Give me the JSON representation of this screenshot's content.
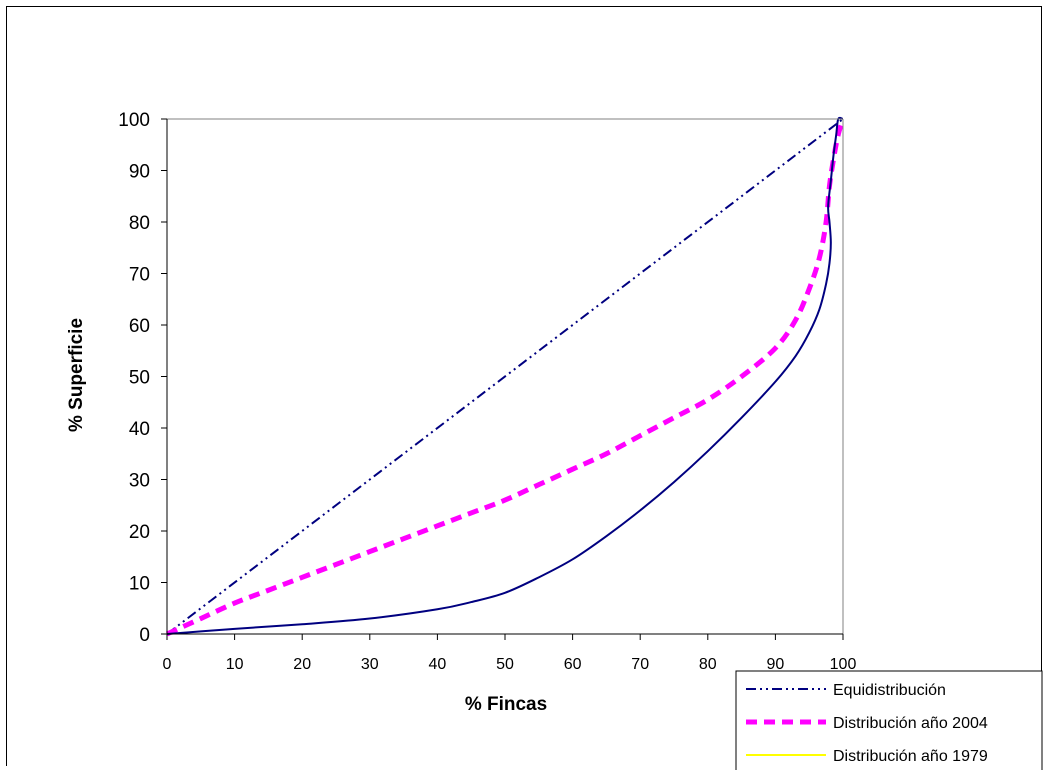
{
  "chart_data": {
    "type": "line",
    "xlabel": "% Fincas",
    "ylabel": "% Superficie",
    "xlim": [
      0,
      100
    ],
    "ylim": [
      0,
      100
    ],
    "xticks": [
      0,
      10,
      20,
      30,
      40,
      50,
      60,
      70,
      80,
      90,
      100
    ],
    "yticks": [
      0,
      10,
      20,
      30,
      40,
      50,
      60,
      70,
      80,
      90,
      100
    ],
    "grid": false,
    "legend_position": "bottom-right",
    "series": [
      {
        "name": "Equidistribución",
        "color": "#000080",
        "style": "dash-dot-dot",
        "points": [
          [
            0,
            0
          ],
          [
            100,
            100
          ]
        ]
      },
      {
        "name": "Distribución año 2004",
        "color": "#ff00ff",
        "style": "dashed-thick",
        "points": [
          [
            0,
            0
          ],
          [
            5,
            3
          ],
          [
            10,
            6
          ],
          [
            15,
            8.5
          ],
          [
            20,
            11
          ],
          [
            25,
            13.5
          ],
          [
            30,
            16
          ],
          [
            35,
            18.5
          ],
          [
            40,
            21
          ],
          [
            45,
            23.5
          ],
          [
            50,
            26
          ],
          [
            55,
            29
          ],
          [
            60,
            32
          ],
          [
            65,
            35
          ],
          [
            70,
            38.5
          ],
          [
            75,
            42
          ],
          [
            80,
            45.5
          ],
          [
            85,
            50
          ],
          [
            90,
            55.5
          ],
          [
            93,
            61
          ],
          [
            95,
            67
          ],
          [
            96.5,
            73
          ],
          [
            97.5,
            80
          ],
          [
            98,
            87
          ],
          [
            98.7,
            93
          ],
          [
            99.3,
            97
          ],
          [
            100,
            100
          ]
        ]
      },
      {
        "name": "Distribución año 1979",
        "color": "#ffff00",
        "style": "solid",
        "points": []
      },
      {
        "name": "",
        "color": "#000080",
        "style": "solid",
        "points": [
          [
            0,
            0
          ],
          [
            5,
            0.5
          ],
          [
            10,
            1
          ],
          [
            20,
            1.9
          ],
          [
            30,
            3
          ],
          [
            40,
            4.8
          ],
          [
            45,
            6.2
          ],
          [
            50,
            8
          ],
          [
            55,
            11
          ],
          [
            60,
            14.5
          ],
          [
            65,
            19
          ],
          [
            70,
            24
          ],
          [
            75,
            29.5
          ],
          [
            80,
            35.5
          ],
          [
            85,
            42
          ],
          [
            90,
            49
          ],
          [
            93,
            54
          ],
          [
            95,
            58.5
          ],
          [
            96.5,
            63
          ],
          [
            97.5,
            68
          ],
          [
            98,
            72
          ],
          [
            98.2,
            76
          ],
          [
            98,
            80
          ],
          [
            97.8,
            83
          ],
          [
            98.2,
            88
          ],
          [
            98.6,
            93
          ],
          [
            99,
            97
          ],
          [
            99.3,
            100
          ],
          [
            100,
            100
          ]
        ]
      }
    ]
  }
}
